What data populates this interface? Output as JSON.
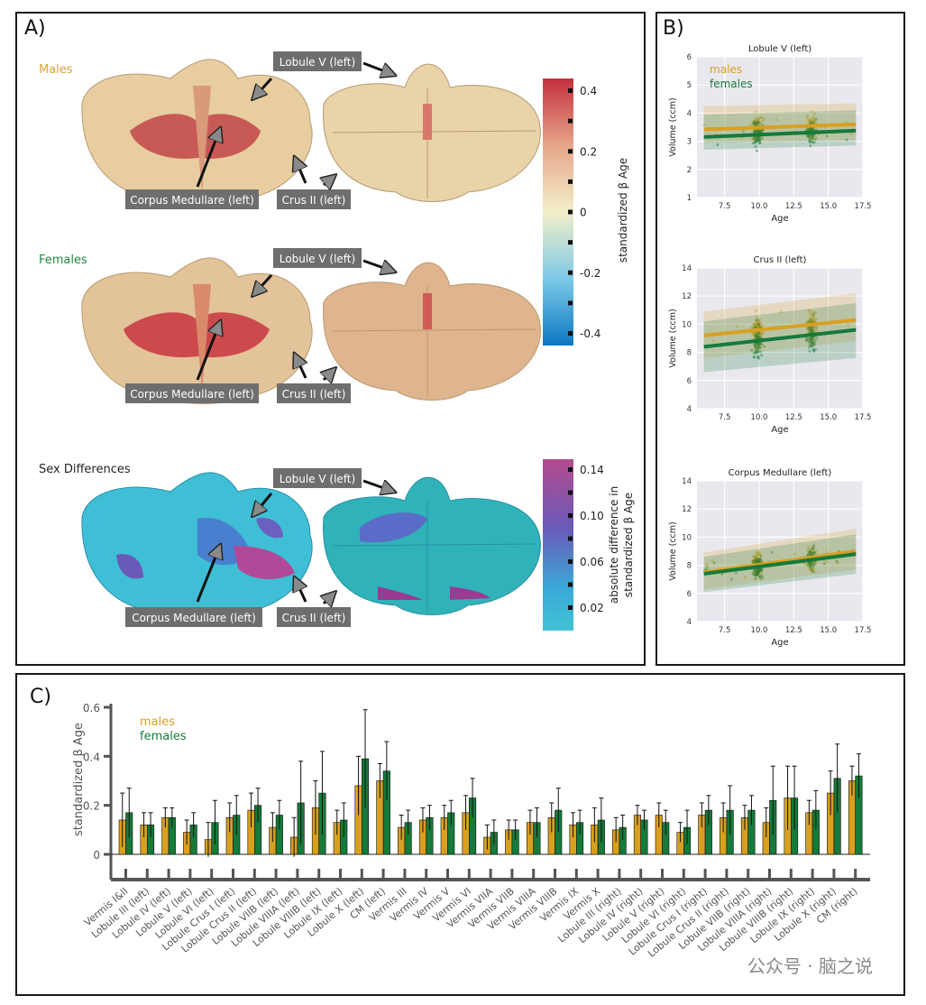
{
  "panels": {
    "a": "A)",
    "b": "B)",
    "c": "C)"
  },
  "panel_a": {
    "rows": [
      "Males",
      "Females",
      "Sex Differences"
    ],
    "row_colors": [
      "#d9a63a",
      "#1e8a3c",
      "#222222"
    ],
    "callouts": {
      "lobule_v": "Lobule V (left)",
      "corpus": "Corpus Medullare (left)",
      "crus": "Crus II (left)"
    },
    "colorbar1": {
      "label": "standardized β Age",
      "ticks": [
        "0.4",
        "0.2",
        "0",
        "-0.2",
        "-0.4"
      ]
    },
    "colorbar2": {
      "label_line1": "absolute difference in",
      "label_line2": "standardized β Age",
      "ticks": [
        "0.14",
        "0.10",
        "0.06",
        "0.02"
      ]
    }
  },
  "legend": {
    "males": "males",
    "females": "females"
  },
  "colors": {
    "males": "#d9a020",
    "females": "#167a3a",
    "plot_bg": "#e8e8ee"
  },
  "chart_data": [
    {
      "type": "scatter",
      "title": "Lobule V (left)",
      "xlabel": "Age",
      "ylabel": "Volume (ccm)",
      "xlim": [
        5.5,
        17.5
      ],
      "ylim": [
        1,
        6
      ],
      "xticks": [
        "7.5",
        "10.0",
        "12.5",
        "15.0",
        "17.5"
      ],
      "yticks": [
        "1",
        "2",
        "3",
        "4",
        "5",
        "6"
      ],
      "series": [
        {
          "name": "males",
          "fit": [
            [
              6,
              3.42
            ],
            [
              17,
              3.6
            ]
          ],
          "band_lo": [
            2.95,
            3.05
          ],
          "band_hi": [
            4.25,
            4.35
          ]
        },
        {
          "name": "females",
          "fit": [
            [
              6,
              3.15
            ],
            [
              17,
              3.38
            ]
          ],
          "band_lo": [
            2.7,
            2.85
          ],
          "band_hi": [
            3.95,
            4.1
          ]
        }
      ]
    },
    {
      "type": "scatter",
      "title": "Crus II (left)",
      "xlabel": "Age",
      "ylabel": "Volume (ccm)",
      "xlim": [
        5.5,
        17.5
      ],
      "ylim": [
        4,
        14
      ],
      "xticks": [
        "7.5",
        "10.0",
        "12.5",
        "15.0",
        "17.5"
      ],
      "yticks": [
        "4",
        "6",
        "8",
        "10",
        "12",
        "14"
      ],
      "series": [
        {
          "name": "males",
          "fit": [
            [
              6,
              9.2
            ],
            [
              17,
              10.3
            ]
          ],
          "band_lo": [
            7.6,
            8.8
          ],
          "band_hi": [
            10.9,
            12.2
          ]
        },
        {
          "name": "females",
          "fit": [
            [
              6,
              8.4
            ],
            [
              17,
              9.6
            ]
          ],
          "band_lo": [
            6.6,
            7.6
          ],
          "band_hi": [
            10.2,
            11.5
          ]
        }
      ]
    },
    {
      "type": "scatter",
      "title": "Corpus Medullare (left)",
      "xlabel": "Age",
      "ylabel": "Volume (ccm)",
      "xlim": [
        5.5,
        17.5
      ],
      "ylim": [
        4,
        14
      ],
      "xticks": [
        "7.5",
        "10.0",
        "12.5",
        "15.0",
        "17.5"
      ],
      "yticks": [
        "4",
        "6",
        "8",
        "10",
        "12",
        "14"
      ],
      "series": [
        {
          "name": "males",
          "fit": [
            [
              6,
              7.5
            ],
            [
              17,
              9.0
            ]
          ],
          "band_lo": [
            6.3,
            7.7
          ],
          "band_hi": [
            8.9,
            10.6
          ]
        },
        {
          "name": "females",
          "fit": [
            [
              6,
              7.4
            ],
            [
              17,
              8.8
            ]
          ],
          "band_lo": [
            6.1,
            7.4
          ],
          "band_hi": [
            8.6,
            10.2
          ]
        }
      ]
    },
    {
      "type": "bar",
      "ylabel": "standardized β Age",
      "ylim": [
        -0.04,
        0.6
      ],
      "yticks": [
        "0",
        "0.2",
        "0.4",
        "0.6"
      ],
      "categories": [
        "Vermis I&II",
        "Lobule III (left)",
        "Lobule IV (left)",
        "Lobule V (left)",
        "Lobule VI (left)",
        "Lobule Crus I (left)",
        "Lobule Crus II (left)",
        "Lobule VIIB (left)",
        "Lobule VIIIA (left)",
        "Lobule VIIIB (left)",
        "Lobule IX (left)",
        "Lobule X (left)",
        "CM (left)",
        "Vermis III",
        "Vermis IV",
        "Vermis V",
        "Vermis VI",
        "Vermis VIIA",
        "Vermis VIIB",
        "Vermis VIIIA",
        "Vermis VIIIB",
        "Vermis IX",
        "Vermis X",
        "Lobule III (right)",
        "Lobule IV (right)",
        "Lobule V (right)",
        "Lobule VI (right)",
        "Lobule Crus I (right)",
        "Lobule Crus II (right)",
        "Lobule VIIB (right)",
        "Lobule VIIIA (right)",
        "Lobule VIIIB (right)",
        "Lobule IX (right)",
        "Lobule X (right)",
        "CM (right)"
      ],
      "series": [
        {
          "name": "males",
          "values": [
            0.14,
            0.12,
            0.15,
            0.09,
            0.06,
            0.15,
            0.18,
            0.11,
            0.07,
            0.19,
            0.13,
            0.28,
            0.3,
            0.11,
            0.14,
            0.15,
            0.17,
            0.07,
            0.1,
            0.13,
            0.15,
            0.12,
            0.12,
            0.1,
            0.16,
            0.16,
            0.09,
            0.16,
            0.15,
            0.15,
            0.13,
            0.23,
            0.17,
            0.25,
            0.3
          ],
          "err": [
            0.11,
            0.05,
            0.04,
            0.05,
            0.07,
            0.06,
            0.07,
            0.06,
            0.08,
            0.11,
            0.05,
            0.12,
            0.07,
            0.05,
            0.05,
            0.05,
            0.07,
            0.05,
            0.04,
            0.05,
            0.06,
            0.05,
            0.07,
            0.05,
            0.04,
            0.05,
            0.04,
            0.05,
            0.06,
            0.05,
            0.06,
            0.13,
            0.05,
            0.09,
            0.06
          ]
        },
        {
          "name": "females",
          "values": [
            0.17,
            0.12,
            0.15,
            0.12,
            0.13,
            0.16,
            0.2,
            0.16,
            0.21,
            0.25,
            0.14,
            0.39,
            0.34,
            0.13,
            0.15,
            0.17,
            0.23,
            0.09,
            0.1,
            0.13,
            0.18,
            0.13,
            0.14,
            0.11,
            0.14,
            0.13,
            0.11,
            0.18,
            0.18,
            0.18,
            0.22,
            0.23,
            0.18,
            0.31,
            0.32
          ],
          "err": [
            0.1,
            0.05,
            0.04,
            0.05,
            0.09,
            0.08,
            0.07,
            0.06,
            0.17,
            0.17,
            0.07,
            0.2,
            0.12,
            0.05,
            0.05,
            0.05,
            0.08,
            0.05,
            0.04,
            0.06,
            0.09,
            0.05,
            0.09,
            0.05,
            0.04,
            0.05,
            0.07,
            0.06,
            0.1,
            0.06,
            0.14,
            0.13,
            0.08,
            0.14,
            0.09
          ]
        }
      ]
    }
  ],
  "watermark": "公众号 · 脑之说"
}
